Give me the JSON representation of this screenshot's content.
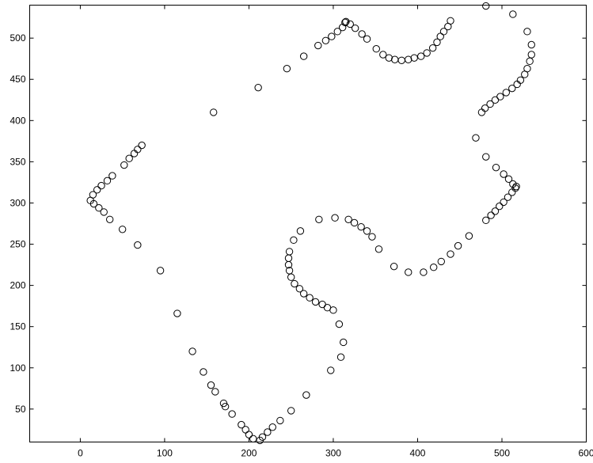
{
  "chart_data": {
    "type": "scatter",
    "title": "",
    "xlabel": "",
    "ylabel": "",
    "xlim": [
      -60,
      600
    ],
    "ylim": [
      10,
      540
    ],
    "xticks": [
      0,
      100,
      200,
      300,
      400,
      500,
      600
    ],
    "yticks": [
      50,
      100,
      150,
      200,
      250,
      300,
      350,
      400,
      450,
      500
    ],
    "xtick_labels": [
      "0",
      "100",
      "200",
      "300",
      "400",
      "500",
      "600"
    ],
    "ytick_labels": [
      "50",
      "100",
      "150",
      "200",
      "250",
      "300",
      "350",
      "400",
      "450",
      "500"
    ],
    "grid": false,
    "marker": "open-circle",
    "marker_color": "#000000",
    "points": [
      [
        12,
        303
      ],
      [
        15,
        310
      ],
      [
        16,
        299
      ],
      [
        20,
        316
      ],
      [
        22,
        294
      ],
      [
        25,
        321
      ],
      [
        28,
        289
      ],
      [
        32,
        327
      ],
      [
        35,
        280
      ],
      [
        38,
        333
      ],
      [
        50,
        268
      ],
      [
        52,
        346
      ],
      [
        58,
        354
      ],
      [
        64,
        360
      ],
      [
        68,
        365
      ],
      [
        73,
        370
      ],
      [
        68,
        249
      ],
      [
        95,
        218
      ],
      [
        115,
        166
      ],
      [
        133,
        120
      ],
      [
        146,
        95
      ],
      [
        155,
        79
      ],
      [
        160,
        71
      ],
      [
        170,
        57
      ],
      [
        172,
        53
      ],
      [
        180,
        44
      ],
      [
        191,
        31
      ],
      [
        196,
        25
      ],
      [
        200,
        19
      ],
      [
        205,
        14
      ],
      [
        213,
        12
      ],
      [
        216,
        16
      ],
      [
        222,
        22
      ],
      [
        228,
        28
      ],
      [
        237,
        36
      ],
      [
        250,
        48
      ],
      [
        268,
        67
      ],
      [
        297,
        97
      ],
      [
        309,
        113
      ],
      [
        312,
        131
      ],
      [
        307,
        153
      ],
      [
        300,
        170
      ],
      [
        293,
        173
      ],
      [
        287,
        177
      ],
      [
        279,
        180
      ],
      [
        272,
        185
      ],
      [
        265,
        190
      ],
      [
        260,
        196
      ],
      [
        254,
        202
      ],
      [
        250,
        210
      ],
      [
        248,
        218
      ],
      [
        247,
        225
      ],
      [
        247,
        233
      ],
      [
        248,
        241
      ],
      [
        253,
        255
      ],
      [
        261,
        266
      ],
      [
        283,
        280
      ],
      [
        302,
        282
      ],
      [
        318,
        280
      ],
      [
        325,
        276
      ],
      [
        333,
        271
      ],
      [
        340,
        266
      ],
      [
        346,
        259
      ],
      [
        354,
        244
      ],
      [
        372,
        223
      ],
      [
        389,
        216
      ],
      [
        407,
        216
      ],
      [
        419,
        222
      ],
      [
        428,
        229
      ],
      [
        439,
        238
      ],
      [
        448,
        248
      ],
      [
        461,
        260
      ],
      [
        481,
        279
      ],
      [
        487,
        285
      ],
      [
        492,
        290
      ],
      [
        497,
        296
      ],
      [
        502,
        301
      ],
      [
        507,
        307
      ],
      [
        512,
        313
      ],
      [
        516,
        318
      ],
      [
        517,
        320
      ],
      [
        513,
        323
      ],
      [
        508,
        329
      ],
      [
        502,
        335
      ],
      [
        493,
        343
      ],
      [
        481,
        356
      ],
      [
        469,
        379
      ],
      [
        476,
        410
      ],
      [
        480,
        415
      ],
      [
        486,
        420
      ],
      [
        492,
        425
      ],
      [
        498,
        429
      ],
      [
        505,
        434
      ],
      [
        512,
        439
      ],
      [
        518,
        444
      ],
      [
        522,
        449
      ],
      [
        527,
        456
      ],
      [
        530,
        463
      ],
      [
        533,
        472
      ],
      [
        535,
        480
      ],
      [
        535,
        492
      ],
      [
        530,
        508
      ],
      [
        513,
        529
      ],
      [
        481,
        539
      ],
      [
        158,
        410
      ],
      [
        211,
        440
      ],
      [
        245,
        463
      ],
      [
        265,
        478
      ],
      [
        282,
        491
      ],
      [
        291,
        497
      ],
      [
        298,
        502
      ],
      [
        305,
        508
      ],
      [
        311,
        513
      ],
      [
        314,
        519
      ],
      [
        315,
        520
      ],
      [
        320,
        517
      ],
      [
        326,
        512
      ],
      [
        334,
        505
      ],
      [
        340,
        499
      ],
      [
        351,
        487
      ],
      [
        359,
        480
      ],
      [
        366,
        476
      ],
      [
        373,
        474
      ],
      [
        381,
        473
      ],
      [
        389,
        474
      ],
      [
        396,
        476
      ],
      [
        404,
        478
      ],
      [
        411,
        482
      ],
      [
        418,
        488
      ],
      [
        423,
        495
      ],
      [
        427,
        502
      ],
      [
        431,
        508
      ],
      [
        436,
        514
      ],
      [
        439,
        521
      ]
    ]
  }
}
